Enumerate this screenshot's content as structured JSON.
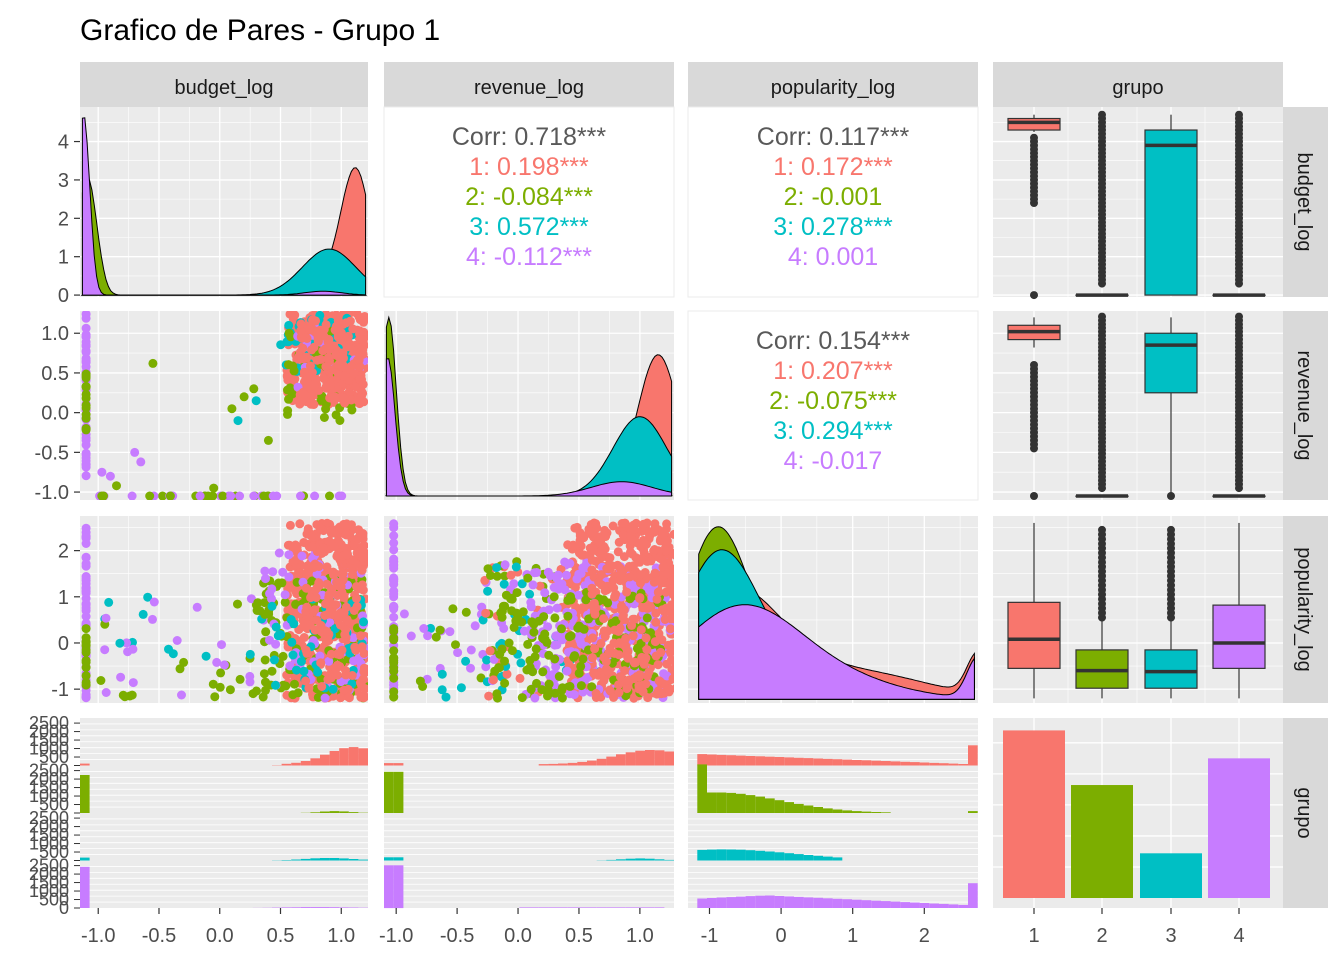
{
  "title": "Grafico de Pares - Grupo 1",
  "colors": {
    "group1": "#F8766D",
    "group2": "#7CAE00",
    "group3": "#00BFC4",
    "group4": "#C77CFF",
    "panel_background": "#EBEBEB",
    "strip_background": "#D9D9D9",
    "overall_corr_text": "#595959"
  },
  "chart_data": {
    "type": "scatter",
    "subtype": "pairs-plot",
    "title": "Grafico de Pares - Grupo 1",
    "variables": [
      "budget_log",
      "revenue_log",
      "popularity_log",
      "grupo"
    ],
    "groups": [
      "1",
      "2",
      "3",
      "4"
    ],
    "axes": {
      "budget_log": {
        "range": [
          -1.15,
          1.22
        ],
        "ticks": [
          "-1.0",
          "-0.5",
          "0.0",
          "0.5",
          "1.0"
        ]
      },
      "revenue_log": {
        "range": [
          -1.1,
          1.28
        ],
        "ticks": [
          "-1.0",
          "-0.5",
          "0.0",
          "0.5",
          "1.0"
        ]
      },
      "popularity_log": {
        "range": [
          -1.3,
          2.75
        ],
        "ticks": [
          "-1",
          "0",
          "1",
          "2"
        ]
      },
      "grupo": {
        "ticks": [
          "1",
          "2",
          "3",
          "4"
        ]
      }
    },
    "row_ticks": {
      "budget_log_density": [
        "0",
        "1",
        "2",
        "3",
        "4"
      ],
      "revenue_log": [
        "-1.0",
        "-0.5",
        "0.0",
        "0.5",
        "1.0"
      ],
      "popularity_log": [
        "-1",
        "0",
        "1",
        "2"
      ],
      "grupo_counts": [
        "0",
        "500",
        "1000",
        "1500",
        "2000",
        "2500"
      ]
    },
    "correlations": [
      {
        "pair": "budget_log-revenue_log",
        "lines": [
          {
            "text": "Corr: 0.718***",
            "group": "all"
          },
          {
            "text": "1: 0.198***",
            "group": "1"
          },
          {
            "text": "2: -0.084***",
            "group": "2"
          },
          {
            "text": "3: 0.572***",
            "group": "3"
          },
          {
            "text": "4: -0.112***",
            "group": "4"
          }
        ]
      },
      {
        "pair": "budget_log-popularity_log",
        "lines": [
          {
            "text": "Corr: 0.117***",
            "group": "all"
          },
          {
            "text": "1: 0.172***",
            "group": "1"
          },
          {
            "text": "2: -0.001",
            "group": "2"
          },
          {
            "text": "3: 0.278***",
            "group": "3"
          },
          {
            "text": "4: 0.001",
            "group": "4"
          }
        ]
      },
      {
        "pair": "revenue_log-popularity_log",
        "lines": [
          {
            "text": "Corr: 0.154***",
            "group": "all"
          },
          {
            "text": "1: 0.207***",
            "group": "1"
          },
          {
            "text": "2: -0.075***",
            "group": "2"
          },
          {
            "text": "3: 0.294***",
            "group": "3"
          },
          {
            "text": "4: -0.017",
            "group": "4"
          }
        ]
      }
    ],
    "group_counts": {
      "1": 2700,
      "2": 1820,
      "3": 720,
      "4": 2250
    },
    "boxplots": {
      "budget_log": [
        {
          "group": "1",
          "q1": 4.3,
          "median": 4.5,
          "q3": 4.6,
          "lower": 4.25,
          "upper": 4.7
        },
        {
          "group": "2",
          "q1": 0,
          "median": 0,
          "q3": 0,
          "lower": 0,
          "upper": 0
        },
        {
          "group": "3",
          "q1": 0,
          "median": 3.9,
          "q3": 4.3,
          "lower": 0,
          "upper": 4.7
        },
        {
          "group": "4",
          "q1": 0,
          "median": 0,
          "q3": 0,
          "lower": 0,
          "upper": 0
        }
      ],
      "revenue_log": [
        {
          "group": "1",
          "q1": 0.92,
          "median": 1.02,
          "q3": 1.1,
          "lower": 0.82,
          "upper": 1.2
        },
        {
          "group": "2",
          "q1": -1.05,
          "median": -1.05,
          "q3": -1.05,
          "lower": -1.05,
          "upper": -1.05
        },
        {
          "group": "3",
          "q1": 0.25,
          "median": 0.85,
          "q3": 1.0,
          "lower": -1.05,
          "upper": 1.2
        },
        {
          "group": "4",
          "q1": -1.05,
          "median": -1.05,
          "q3": -1.05,
          "lower": -1.05,
          "upper": -1.05
        }
      ],
      "popularity_log": [
        {
          "group": "1",
          "q1": -0.55,
          "median": 0.08,
          "q3": 0.88,
          "lower": -1.2,
          "upper": 2.6
        },
        {
          "group": "2",
          "q1": -0.98,
          "median": -0.6,
          "q3": -0.15,
          "lower": -1.2,
          "upper": 0.5
        },
        {
          "group": "3",
          "q1": -0.98,
          "median": -0.62,
          "q3": -0.15,
          "lower": -1.2,
          "upper": 0.5
        },
        {
          "group": "4",
          "q1": -0.55,
          "median": 0.0,
          "q3": 0.82,
          "lower": -1.2,
          "upper": 2.6
        }
      ]
    }
  }
}
